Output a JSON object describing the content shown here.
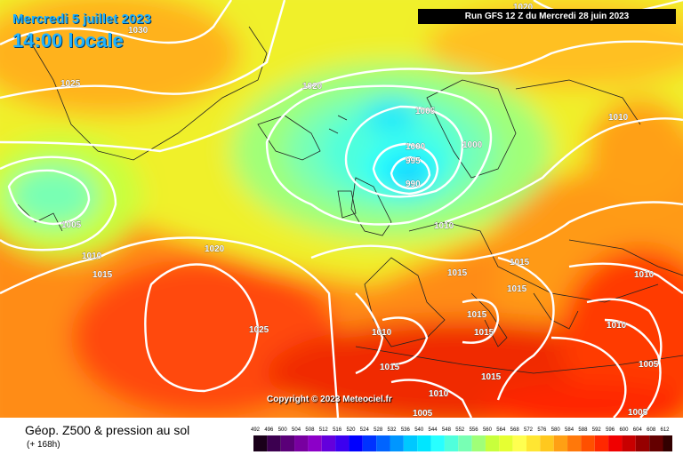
{
  "header": {
    "date": "Mercredi 5 juillet 2023",
    "time": "14:00 locale",
    "run": "Run GFS 12 Z du Mercredi 28 juin 2023"
  },
  "copyright": "Copyright © 2023 Meteociel.fr",
  "legend": {
    "title": "Géop. Z500 & pression au sol",
    "subtitle": "(+ 168h)",
    "levels": [
      "492",
      "496",
      "500",
      "504",
      "508",
      "512",
      "516",
      "520",
      "524",
      "528",
      "532",
      "536",
      "540",
      "544",
      "548",
      "552",
      "556",
      "560",
      "564",
      "568",
      "572",
      "576",
      "580",
      "584",
      "588",
      "592",
      "596",
      "600",
      "604",
      "608",
      "612"
    ],
    "colors": [
      "#1a001a",
      "#3c0050",
      "#5a0078",
      "#7800a0",
      "#8c00c8",
      "#6400dc",
      "#3c00f0",
      "#0000ff",
      "#0032ff",
      "#0064ff",
      "#0096ff",
      "#00c8ff",
      "#00e6ff",
      "#28ffff",
      "#50ffdc",
      "#78ffb4",
      "#a0ff78",
      "#c8ff3c",
      "#e6ff32",
      "#ffff50",
      "#ffe632",
      "#ffc81e",
      "#ffa014",
      "#ff780a",
      "#ff5000",
      "#ff2800",
      "#f00000",
      "#c80000",
      "#960000",
      "#640000",
      "#320000"
    ]
  },
  "isobar_labels": [
    {
      "text": "1030"
    },
    {
      "text": "1025"
    },
    {
      "text": "1020"
    },
    {
      "text": "1005"
    },
    {
      "text": "1000"
    },
    {
      "text": "995"
    },
    {
      "text": "990"
    },
    {
      "text": "1000"
    },
    {
      "text": "1010"
    },
    {
      "text": "1005"
    },
    {
      "text": "1010"
    },
    {
      "text": "1015"
    },
    {
      "text": "1020"
    },
    {
      "text": "1025"
    },
    {
      "text": "1010"
    },
    {
      "text": "1015"
    },
    {
      "text": "1015"
    },
    {
      "text": "1015"
    },
    {
      "text": "1010"
    },
    {
      "text": "1015"
    },
    {
      "text": "1015"
    },
    {
      "text": "1015"
    },
    {
      "text": "1010"
    },
    {
      "text": "1010"
    },
    {
      "text": "1015"
    },
    {
      "text": "1010"
    },
    {
      "text": "1005"
    },
    {
      "text": "1005"
    },
    {
      "text": "1005"
    },
    {
      "text": "1020"
    }
  ]
}
